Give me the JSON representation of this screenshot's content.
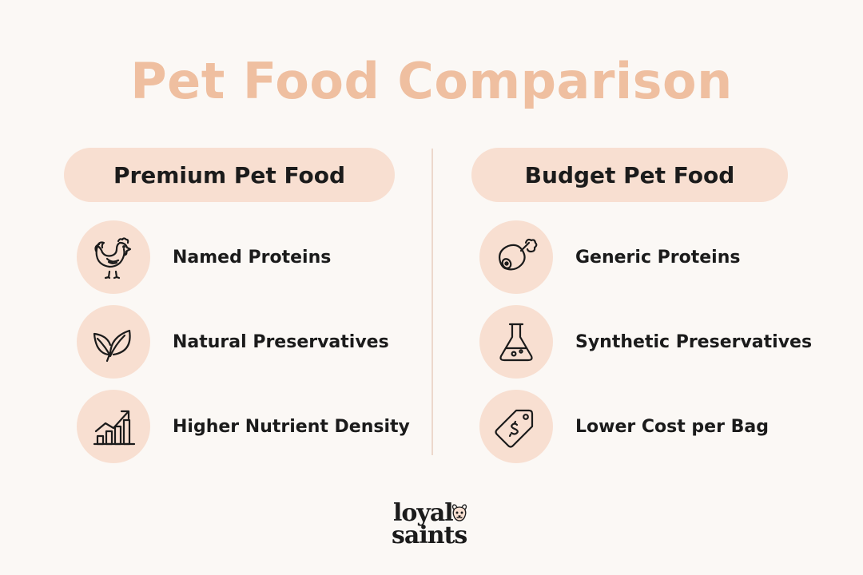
{
  "title": "Pet Food Comparison",
  "colors": {
    "background": "#fbf8f5",
    "title": "#efbfa0",
    "pill": "#f8dfd1",
    "icon_circle": "#f8dfd1",
    "divider": "#ecd8cc",
    "text": "#1b1b1b"
  },
  "left": {
    "heading": "Premium Pet Food",
    "items": [
      {
        "label": "Named Proteins",
        "icon": "chicken-icon"
      },
      {
        "label": "Natural Preservatives",
        "icon": "leaf-icon"
      },
      {
        "label": "Higher Nutrient Density",
        "icon": "chart-up-icon"
      }
    ]
  },
  "right": {
    "heading": "Budget Pet Food",
    "items": [
      {
        "label": "Generic Proteins",
        "icon": "meat-leg-icon"
      },
      {
        "label": "Synthetic Preservatives",
        "icon": "flask-icon"
      },
      {
        "label": "Lower Cost per Bag",
        "icon": "price-tag-icon"
      }
    ]
  },
  "logo": {
    "line1": "loyal",
    "line2": "saints",
    "icon": "dog-icon"
  }
}
